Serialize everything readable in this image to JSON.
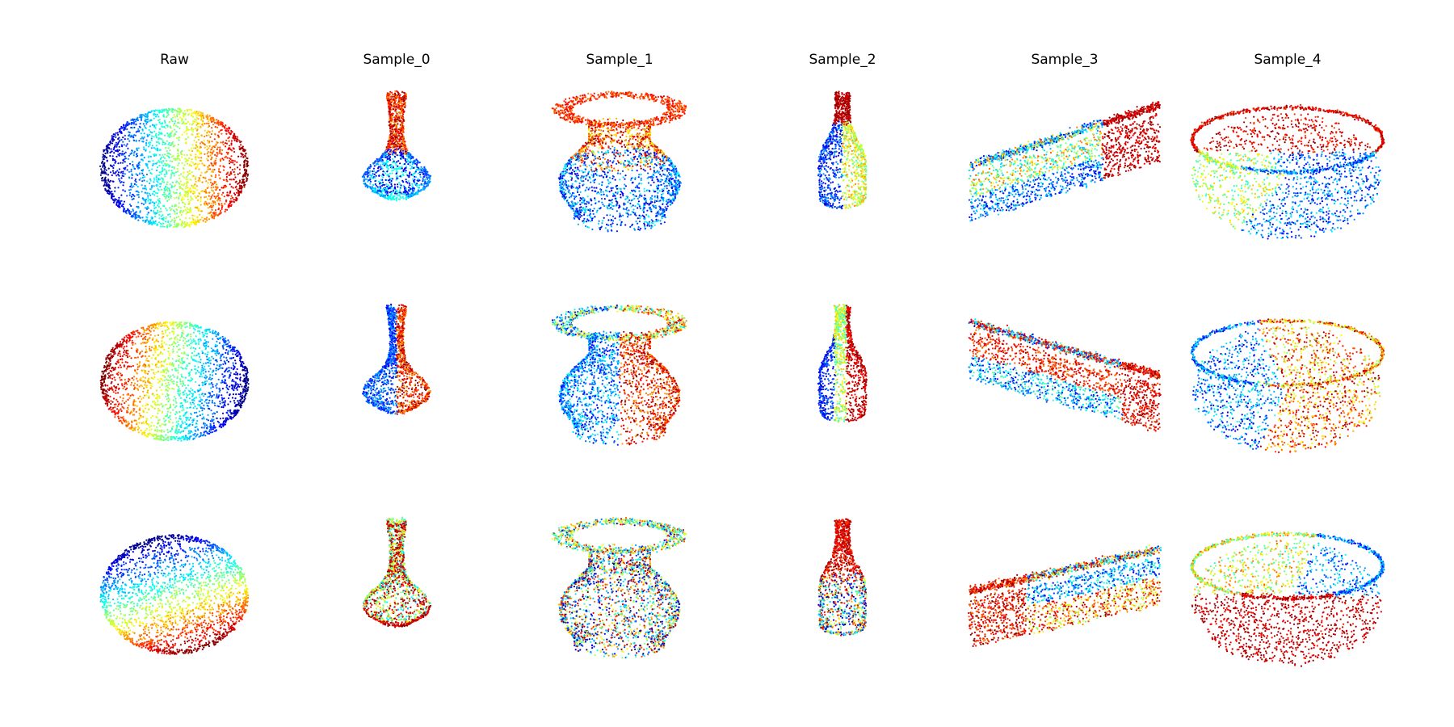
{
  "figure": {
    "columns": [
      {
        "title": "Raw",
        "shape": "sphere"
      },
      {
        "title": "Sample_0",
        "shape": "flask"
      },
      {
        "title": "Sample_1",
        "shape": "jar"
      },
      {
        "title": "Sample_2",
        "shape": "bottle"
      },
      {
        "title": "Sample_3",
        "shape": "sofa"
      },
      {
        "title": "Sample_4",
        "shape": "basket"
      }
    ],
    "rows": 3,
    "colormap": "jet",
    "colormap_stops": [
      "#00007f",
      "#0000ff",
      "#0080ff",
      "#00ffff",
      "#80ff80",
      "#ffff00",
      "#ff8000",
      "#ff0000",
      "#7f0000"
    ],
    "background": "#ffffff"
  }
}
